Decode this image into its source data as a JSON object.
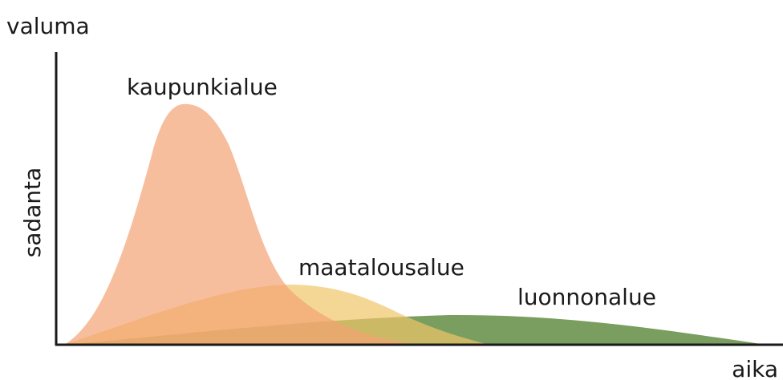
{
  "axes": {
    "y_top": "valuma",
    "y_side": "sadanta",
    "x": "aika"
  },
  "curves": [
    {
      "label": "kaupunkialue"
    },
    {
      "label": "maatalousalue"
    },
    {
      "label": "luonnonalue"
    }
  ]
}
